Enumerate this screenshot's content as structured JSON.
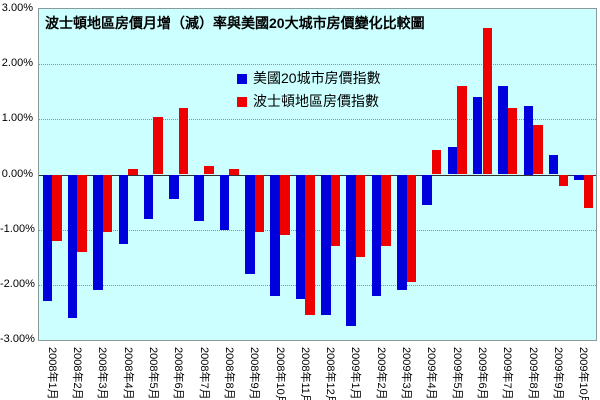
{
  "chart_data": {
    "type": "bar",
    "title": "波士頓地區房價月增（減）率與美國20大城市房價變化比較圖",
    "categories": [
      "2008年1月",
      "2008年2月",
      "2008年3月",
      "2008年4月",
      "2008年5月",
      "2008年6月",
      "2008年7月",
      "2008年8月",
      "2008年9月",
      "2008年10月",
      "2008年11月",
      "2008年12月",
      "2009年1月",
      "2009年2月",
      "2009年3月",
      "2009年4月",
      "2009年5月",
      "2009年6月",
      "2009年7月",
      "2009年8月",
      "2009年9月",
      "2009年10月"
    ],
    "series": [
      {
        "name": "美國20城市房價指數",
        "color": "#0000DD",
        "values": [
          -2.3,
          -2.6,
          -2.1,
          -1.25,
          -0.8,
          -0.45,
          -0.85,
          -1.0,
          -1.8,
          -2.2,
          -2.25,
          -2.55,
          -2.75,
          -2.2,
          -2.1,
          -0.55,
          0.5,
          1.4,
          1.6,
          1.25,
          0.35,
          -0.1
        ]
      },
      {
        "name": "波士頓地區房價指數",
        "color": "#EE0000",
        "values": [
          -1.2,
          -1.4,
          -1.05,
          0.1,
          1.05,
          1.2,
          0.15,
          0.1,
          -1.05,
          -1.1,
          -2.55,
          -1.3,
          -1.5,
          -1.3,
          -1.95,
          0.45,
          1.6,
          2.65,
          1.2,
          0.9,
          -0.2,
          -0.6
        ]
      }
    ],
    "ylim": [
      -3,
      3
    ],
    "ytick_labels": [
      "3.00%",
      "2.00%",
      "1.00%",
      "0.00%",
      "-1.00%",
      "-2.00%",
      "-3.00%"
    ],
    "unit": "%",
    "grid": true,
    "legend_position": "inside-top",
    "plot_background": "#CCFFFF",
    "xlabel": "",
    "ylabel": ""
  }
}
